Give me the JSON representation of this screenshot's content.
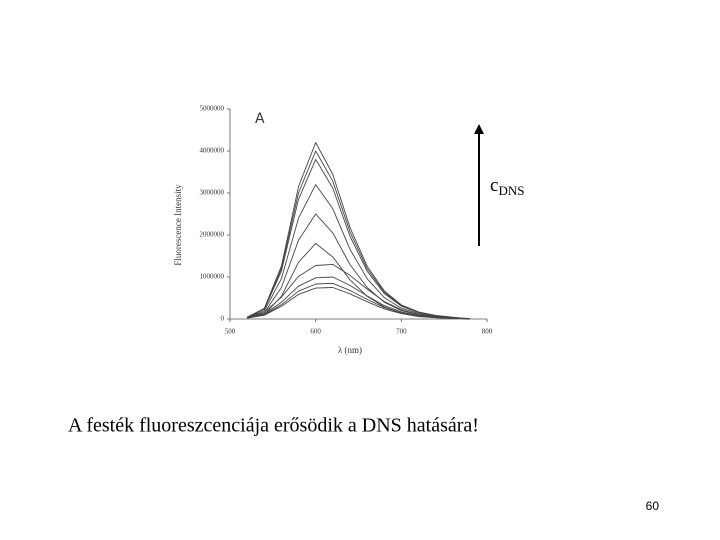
{
  "chart_data": {
    "type": "line",
    "xlabel": "λ (nm)",
    "ylabel": "Fluorescence Intensity",
    "annotation": "A",
    "arrow_label": "c",
    "arrow_label_subscript": "DNS",
    "x": [
      520,
      540,
      560,
      580,
      600,
      620,
      640,
      660,
      680,
      700,
      720,
      740,
      760,
      780
    ],
    "series": [
      {
        "color": "#444",
        "values": [
          42000,
          252000,
          1260000,
          3150000,
          4200000,
          3444000,
          2184000,
          1260000,
          672000,
          336000,
          168000,
          84000,
          42000,
          0
        ]
      },
      {
        "color": "#444",
        "values": [
          40000,
          240000,
          1200000,
          3000000,
          4000000,
          3280000,
          2080000,
          1200000,
          640000,
          320000,
          160000,
          80000,
          40000,
          0
        ]
      },
      {
        "color": "#444",
        "values": [
          38000,
          228000,
          1140000,
          2850000,
          3800000,
          3116000,
          1976000,
          1140000,
          608000,
          304000,
          152000,
          76000,
          38000,
          0
        ]
      },
      {
        "color": "#444",
        "values": [
          32000,
          192000,
          960000,
          2400000,
          3200000,
          2624000,
          1664000,
          960000,
          512000,
          256000,
          128000,
          64000,
          32000,
          0
        ]
      },
      {
        "color": "#444",
        "values": [
          25000,
          150000,
          750000,
          1875000,
          2500000,
          2050000,
          1300000,
          750000,
          400000,
          200000,
          100000,
          50000,
          25000,
          0
        ]
      },
      {
        "color": "#444",
        "values": [
          18000,
          108000,
          540000,
          1350000,
          1800000,
          1476000,
          936000,
          540000,
          288000,
          144000,
          72000,
          36000,
          18000,
          0
        ]
      },
      {
        "color": "#444",
        "values": [
          39000,
          156000,
          520000,
          1014000,
          1274000,
          1300000,
          1040000,
          715000,
          416000,
          221000,
          104000,
          52000,
          26000,
          13000
        ]
      },
      {
        "color": "#444",
        "values": [
          30000,
          120000,
          400000,
          780000,
          980000,
          1000000,
          800000,
          550000,
          320000,
          170000,
          80000,
          40000,
          20000,
          10000
        ]
      },
      {
        "color": "#444",
        "values": [
          25500,
          102000,
          340000,
          663000,
          833000,
          850000,
          680000,
          467500,
          272000,
          144500,
          68000,
          34000,
          17000,
          8500
        ]
      },
      {
        "color": "#444",
        "values": [
          22500,
          90000,
          300000,
          585000,
          735000,
          750000,
          600000,
          412500,
          240000,
          127500,
          60000,
          30000,
          15000,
          7500
        ]
      }
    ],
    "xlim": [
      500,
      800
    ],
    "xticks": [
      500,
      600,
      700,
      800
    ],
    "ylim": [
      0,
      5000000
    ],
    "yticks": [
      0,
      1000000,
      2000000,
      3000000,
      4000000,
      5000000
    ]
  },
  "caption": "A festék fluoreszcenciája erősödik a DNS hatására!",
  "page_number": "60"
}
